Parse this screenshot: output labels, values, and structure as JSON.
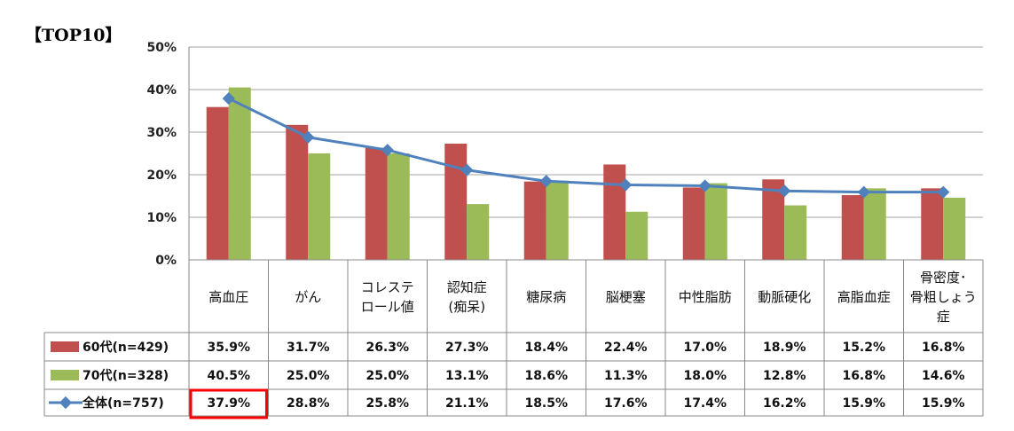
{
  "title": "【TOP10】",
  "chart_data": {
    "type": "bar",
    "ylim": [
      0,
      50
    ],
    "yticks": [
      "0%",
      "10%",
      "20%",
      "30%",
      "40%",
      "50%"
    ],
    "grid": true,
    "legend": "table-left",
    "categories": [
      [
        "高血圧"
      ],
      [
        "がん"
      ],
      [
        "コレステ",
        "ロール値"
      ],
      [
        "認知症",
        "(痴呆)"
      ],
      [
        "糖尿病"
      ],
      [
        "脳梗塞"
      ],
      [
        "中性脂肪"
      ],
      [
        "動脈硬化"
      ],
      [
        "高脂血症"
      ],
      [
        "骨密度･",
        "骨粗しょう",
        "症"
      ]
    ],
    "series": [
      {
        "name": "60代(n=429)",
        "kind": "bar",
        "color": "#c0504d",
        "values": [
          35.9,
          31.7,
          26.3,
          27.3,
          18.4,
          22.4,
          17.0,
          18.9,
          15.2,
          16.8
        ],
        "labels": [
          "35.9%",
          "31.7%",
          "26.3%",
          "27.3%",
          "18.4%",
          "22.4%",
          "17.0%",
          "18.9%",
          "15.2%",
          "16.8%"
        ]
      },
      {
        "name": "70代(n=328)",
        "kind": "bar",
        "color": "#9bbb59",
        "values": [
          40.5,
          25.0,
          25.0,
          13.1,
          18.6,
          11.3,
          18.0,
          12.8,
          16.8,
          14.6
        ],
        "labels": [
          "40.5%",
          "25.0%",
          "25.0%",
          "13.1%",
          "18.6%",
          "11.3%",
          "18.0%",
          "12.8%",
          "16.8%",
          "14.6%"
        ]
      },
      {
        "name": "全体(n=757)",
        "kind": "line",
        "color": "#4f81bd",
        "values": [
          37.9,
          28.8,
          25.8,
          21.1,
          18.5,
          17.6,
          17.4,
          16.2,
          15.9,
          15.9
        ],
        "labels": [
          "37.9%",
          "28.8%",
          "25.8%",
          "21.1%",
          "18.5%",
          "17.6%",
          "17.4%",
          "16.2%",
          "15.9%",
          "15.9%"
        ]
      }
    ],
    "highlight": {
      "series": 2,
      "category": 0,
      "color": "#ff0000"
    }
  }
}
